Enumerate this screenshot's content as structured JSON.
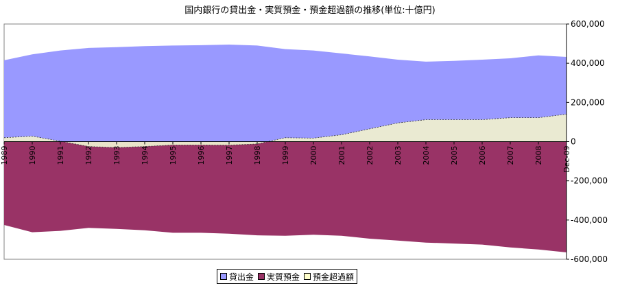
{
  "chart_data": {
    "type": "area",
    "title": "国内銀行の貸出金・実質預金・預金超過額の推移(単位:十億円)",
    "x": [
      "1989",
      "1990",
      "1991",
      "1992",
      "1993",
      "1994",
      "1995",
      "1996",
      "1997",
      "1998",
      "1999",
      "2000",
      "2001",
      "2002",
      "2003",
      "2004",
      "2005",
      "2006",
      "2007",
      "2008",
      "Dec-09"
    ],
    "series": [
      {
        "name": "貸出金",
        "color": "#9999ff",
        "values": [
          415000,
          445000,
          465000,
          478000,
          482000,
          487000,
          490000,
          492000,
          495000,
          490000,
          472000,
          465000,
          450000,
          435000,
          418000,
          408000,
          412000,
          418000,
          425000,
          440000,
          432000
        ]
      },
      {
        "name": "実質預金",
        "color": "#993366",
        "values": [
          -425000,
          -462000,
          -455000,
          -440000,
          -445000,
          -452000,
          -465000,
          -465000,
          -470000,
          -478000,
          -480000,
          -475000,
          -480000,
          -495000,
          -505000,
          -515000,
          -520000,
          -525000,
          -540000,
          -550000,
          -565000
        ]
      },
      {
        "name": "預金超過額",
        "color": "#ffffcc",
        "values": [
          20000,
          28000,
          2000,
          -25000,
          -30000,
          -25000,
          -17000,
          -17000,
          -18000,
          -12000,
          20000,
          18000,
          35000,
          65000,
          95000,
          112000,
          112000,
          112000,
          122000,
          122000,
          140000
        ]
      }
    ],
    "ylim": [
      -600000,
      600000
    ],
    "yticks": [
      "600,000",
      "400,000",
      "200,000",
      "0",
      "-200,000",
      "-400,000",
      "-600,000"
    ],
    "ytick_values": [
      600000,
      400000,
      200000,
      0,
      -200000,
      -400000,
      -600000
    ],
    "legend_position": "bottom",
    "grid": false
  }
}
